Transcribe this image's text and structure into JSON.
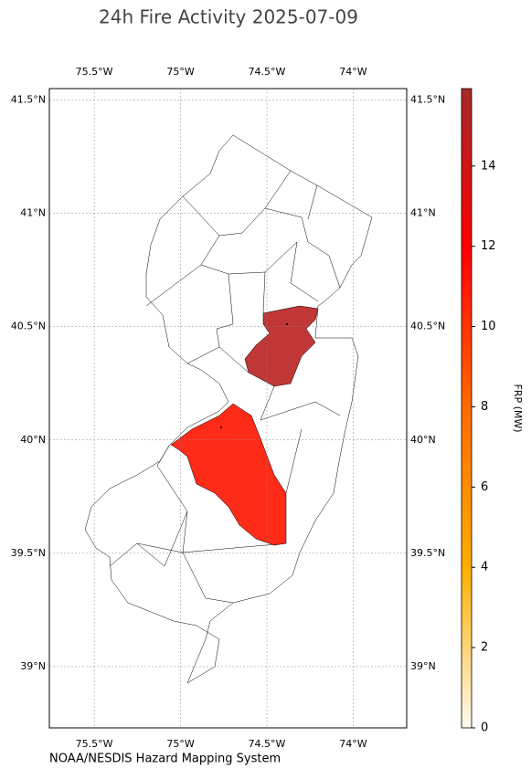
{
  "title": "24h Fire Activity 2025-07-09",
  "map": {
    "xlim": [
      -75.76,
      -73.69
    ],
    "ylim": [
      38.73,
      41.55
    ],
    "lon_ticks": [
      {
        "value": -75.5,
        "label": "75.5°W"
      },
      {
        "value": -75,
        "label": "75°W"
      },
      {
        "value": -74.5,
        "label": "74.5°W"
      },
      {
        "value": -74,
        "label": "74°W"
      }
    ],
    "lat_ticks": [
      {
        "value": 41.5,
        "label": "41.5°N"
      },
      {
        "value": 41,
        "label": "41°N"
      },
      {
        "value": 40.5,
        "label": "40.5°N"
      },
      {
        "value": 40,
        "label": "40°N"
      },
      {
        "value": 39.5,
        "label": "39.5°N"
      },
      {
        "value": 39,
        "label": "39°N"
      }
    ],
    "grid": true,
    "regions": [
      {
        "value": 15
      },
      {
        "value": 11.2
      }
    ]
  },
  "colorbar": {
    "label": "FRP (MW)",
    "lim": [
      0,
      15.93
    ],
    "ticks": [
      0,
      2,
      4,
      6,
      8,
      10,
      12,
      14
    ],
    "colors": [
      "#fffaf0",
      "#ffb000",
      "#ff6a00",
      "#ff0000",
      "#a52a2a"
    ]
  },
  "credit": "NOAA/NESDIS Hazard Mapping System"
}
